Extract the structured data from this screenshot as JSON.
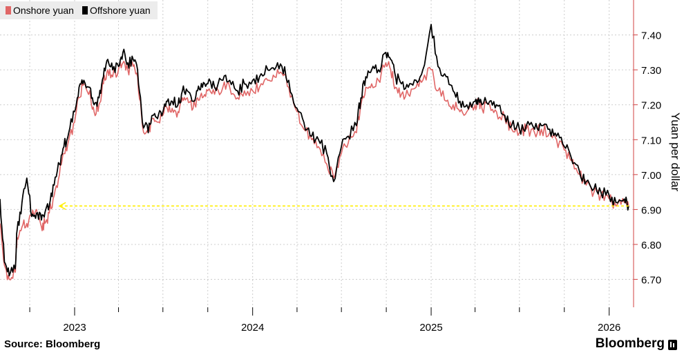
{
  "legend": {
    "onshore_label": "Onshore yuan",
    "offshore_label": "Offshore yuan"
  },
  "footer": {
    "source": "Source: Bloomberg",
    "brand": "Bloomberg",
    "brand_icon": "bloomberg-terminal-icon"
  },
  "colors": {
    "onshore": "#e06666",
    "offshore": "#000000",
    "reference_line": "#ffee00",
    "axis": "#d04040",
    "grid": "#cccccc"
  },
  "chart_data": {
    "type": "line",
    "title": "",
    "xlabel": "",
    "ylabel": "Yuan per dollar",
    "y_axis_side": "right",
    "x_domain": [
      "2022-08-01",
      "2026-02-20"
    ],
    "ylim": [
      6.62,
      7.5
    ],
    "yticks": [
      6.7,
      6.8,
      6.9,
      7.0,
      7.1,
      7.2,
      7.3,
      7.4
    ],
    "ytick_labels": [
      "6.70",
      "6.80",
      "6.90",
      "7.00",
      "7.10",
      "7.20",
      "7.30",
      "7.40"
    ],
    "xtick_labels": [
      "2023",
      "2024",
      "2025",
      "2026"
    ],
    "xtick_dates": [
      "2023-01-01",
      "2024-01-01",
      "2025-01-01",
      "2026-01-01"
    ],
    "grid": true,
    "legend_position": "top-left",
    "annotations": [
      {
        "type": "horizontal-arrow",
        "value": 6.91,
        "from": "2026-02-10",
        "to": "2022-12-01",
        "color": "yellow",
        "style": "dashed"
      }
    ],
    "series": [
      {
        "name": "Onshore yuan",
        "x": [
          "2022-08-01",
          "2022-08-10",
          "2022-08-20",
          "2022-09-01",
          "2022-09-05",
          "2022-09-15",
          "2022-09-25",
          "2022-10-05",
          "2022-10-15",
          "2022-10-25",
          "2022-11-01",
          "2022-11-10",
          "2022-11-20",
          "2022-12-01",
          "2022-12-10",
          "2022-12-20",
          "2023-01-01",
          "2023-01-10",
          "2023-01-20",
          "2023-02-01",
          "2023-02-10",
          "2023-02-20",
          "2023-03-01",
          "2023-03-10",
          "2023-03-20",
          "2023-04-01",
          "2023-04-10",
          "2023-04-20",
          "2023-05-01",
          "2023-05-10",
          "2023-05-20",
          "2023-06-01",
          "2023-06-10",
          "2023-06-20",
          "2023-07-01",
          "2023-07-10",
          "2023-07-20",
          "2023-08-01",
          "2023-08-10",
          "2023-08-20",
          "2023-09-01",
          "2023-09-10",
          "2023-09-20",
          "2023-10-01",
          "2023-10-15",
          "2023-11-01",
          "2023-11-15",
          "2023-12-01",
          "2023-12-15",
          "2024-01-01",
          "2024-01-15",
          "2024-02-01",
          "2024-02-15",
          "2024-03-01",
          "2024-03-15",
          "2024-04-01",
          "2024-04-15",
          "2024-05-01",
          "2024-05-15",
          "2024-06-01",
          "2024-06-15",
          "2024-07-01",
          "2024-07-15",
          "2024-08-01",
          "2024-08-10",
          "2024-08-20",
          "2024-09-01",
          "2024-09-15",
          "2024-09-30",
          "2024-10-10",
          "2024-10-20",
          "2024-11-01",
          "2024-11-15",
          "2024-12-01",
          "2024-12-15",
          "2025-01-01",
          "2025-01-15",
          "2025-02-01",
          "2025-02-15",
          "2025-03-01",
          "2025-03-15",
          "2025-04-01",
          "2025-04-08",
          "2025-04-15",
          "2025-05-01",
          "2025-05-15",
          "2025-06-01",
          "2025-06-15",
          "2025-07-01",
          "2025-07-15",
          "2025-08-01",
          "2025-08-15",
          "2025-09-01",
          "2025-09-15",
          "2025-10-01",
          "2025-10-15",
          "2025-11-01",
          "2025-11-15",
          "2025-12-01",
          "2025-12-15",
          "2026-01-01",
          "2026-01-15",
          "2026-02-01",
          "2026-02-10"
        ],
        "y": [
          6.86,
          6.74,
          6.7,
          6.72,
          6.82,
          6.85,
          6.86,
          6.88,
          6.9,
          6.85,
          6.86,
          6.89,
          6.94,
          7.0,
          7.06,
          7.1,
          7.15,
          7.22,
          7.26,
          7.24,
          7.18,
          7.2,
          7.26,
          7.3,
          7.28,
          7.3,
          7.32,
          7.3,
          7.31,
          7.28,
          7.14,
          7.12,
          7.16,
          7.15,
          7.17,
          7.19,
          7.19,
          7.18,
          7.22,
          7.22,
          7.19,
          7.22,
          7.22,
          7.24,
          7.23,
          7.25,
          7.25,
          7.22,
          7.24,
          7.24,
          7.25,
          7.27,
          7.28,
          7.29,
          7.25,
          7.18,
          7.13,
          7.1,
          7.08,
          7.03,
          6.99,
          7.06,
          7.09,
          7.12,
          7.2,
          7.25,
          7.26,
          7.27,
          7.32,
          7.3,
          7.25,
          7.23,
          7.23,
          7.25,
          7.27,
          7.3,
          7.24,
          7.21,
          7.2,
          7.18,
          7.18,
          7.2,
          7.21,
          7.19,
          7.2,
          7.18,
          7.16,
          7.13,
          7.12,
          7.13,
          7.12,
          7.13,
          7.12,
          7.1,
          7.07,
          7.04,
          7.0,
          6.97,
          6.95,
          6.94,
          6.93,
          6.91,
          6.92,
          6.91
        ]
      },
      {
        "name": "Offshore yuan",
        "x": [
          "2022-08-01",
          "2022-08-10",
          "2022-08-20",
          "2022-09-01",
          "2022-09-05",
          "2022-09-15",
          "2022-09-25",
          "2022-10-05",
          "2022-10-15",
          "2022-10-25",
          "2022-11-01",
          "2022-11-10",
          "2022-11-20",
          "2022-12-01",
          "2022-12-10",
          "2022-12-20",
          "2023-01-01",
          "2023-01-10",
          "2023-01-20",
          "2023-02-01",
          "2023-02-10",
          "2023-02-20",
          "2023-03-01",
          "2023-03-10",
          "2023-03-20",
          "2023-04-01",
          "2023-04-10",
          "2023-04-20",
          "2023-05-01",
          "2023-05-10",
          "2023-05-20",
          "2023-06-01",
          "2023-06-10",
          "2023-06-20",
          "2023-07-01",
          "2023-07-10",
          "2023-07-20",
          "2023-08-01",
          "2023-08-10",
          "2023-08-20",
          "2023-09-01",
          "2023-09-10",
          "2023-09-20",
          "2023-10-01",
          "2023-10-15",
          "2023-11-01",
          "2023-11-15",
          "2023-12-01",
          "2023-12-15",
          "2024-01-01",
          "2024-01-15",
          "2024-02-01",
          "2024-02-15",
          "2024-03-01",
          "2024-03-15",
          "2024-04-01",
          "2024-04-15",
          "2024-05-01",
          "2024-05-15",
          "2024-06-01",
          "2024-06-15",
          "2024-07-01",
          "2024-07-15",
          "2024-08-01",
          "2024-08-10",
          "2024-08-20",
          "2024-09-01",
          "2024-09-15",
          "2024-09-30",
          "2024-10-10",
          "2024-10-20",
          "2024-11-01",
          "2024-11-15",
          "2024-12-01",
          "2024-12-15",
          "2025-01-01",
          "2025-01-15",
          "2025-02-01",
          "2025-02-15",
          "2025-03-01",
          "2025-03-15",
          "2025-04-01",
          "2025-04-08",
          "2025-04-15",
          "2025-05-01",
          "2025-05-15",
          "2025-06-01",
          "2025-06-15",
          "2025-07-01",
          "2025-07-15",
          "2025-08-01",
          "2025-08-15",
          "2025-09-01",
          "2025-09-15",
          "2025-10-01",
          "2025-10-15",
          "2025-11-01",
          "2025-11-15",
          "2025-12-01",
          "2025-12-15",
          "2026-01-01",
          "2026-01-15",
          "2026-02-01",
          "2026-02-10"
        ],
        "y": [
          6.93,
          6.75,
          6.71,
          6.73,
          6.84,
          6.92,
          6.99,
          6.88,
          6.89,
          6.87,
          6.89,
          6.91,
          6.97,
          7.03,
          7.08,
          7.12,
          7.18,
          7.25,
          7.27,
          7.25,
          7.2,
          7.22,
          7.28,
          7.33,
          7.3,
          7.31,
          7.35,
          7.32,
          7.33,
          7.3,
          7.15,
          7.12,
          7.17,
          7.16,
          7.18,
          7.21,
          7.21,
          7.2,
          7.24,
          7.24,
          7.21,
          7.24,
          7.25,
          7.26,
          7.25,
          7.27,
          7.27,
          7.24,
          7.26,
          7.27,
          7.28,
          7.3,
          7.3,
          7.31,
          7.27,
          7.19,
          7.15,
          7.11,
          7.1,
          7.06,
          6.98,
          7.08,
          7.11,
          7.14,
          7.22,
          7.28,
          7.3,
          7.3,
          7.35,
          7.33,
          7.28,
          7.26,
          7.25,
          7.27,
          7.3,
          7.43,
          7.31,
          7.28,
          7.24,
          7.21,
          7.2,
          7.21,
          7.22,
          7.2,
          7.21,
          7.2,
          7.17,
          7.14,
          7.13,
          7.14,
          7.13,
          7.14,
          7.13,
          7.11,
          7.08,
          7.05,
          7.01,
          6.98,
          6.96,
          6.95,
          6.94,
          6.92,
          6.93,
          6.91
        ]
      }
    ]
  }
}
